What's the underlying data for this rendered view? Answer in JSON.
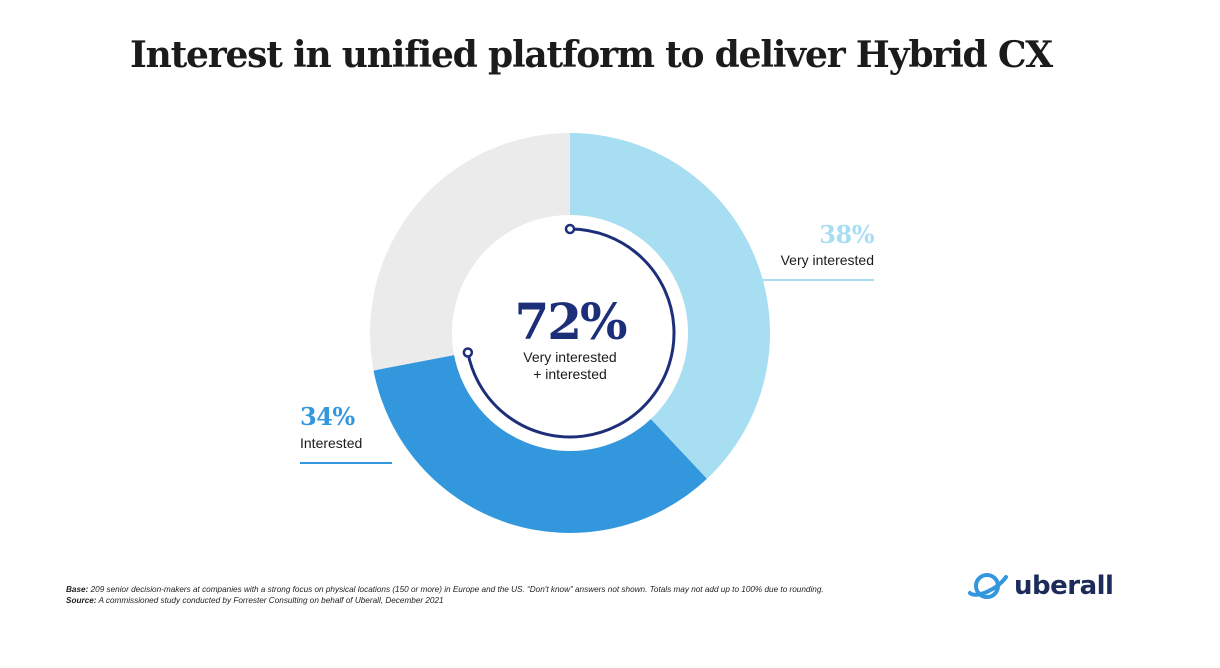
{
  "title": "Interest in unified platform to deliver Hybrid CX",
  "chart_data": {
    "type": "pie",
    "slices": [
      {
        "label": "Very interested",
        "value": 38,
        "display": "38%",
        "color": "#a8def1"
      },
      {
        "label": "Interested",
        "value": 34,
        "display": "34%",
        "color": "#3397dd"
      },
      {
        "label": "",
        "value": 28,
        "display": "",
        "color": "#ebebeb"
      }
    ],
    "center_value": "72%",
    "center_label_line1": "Very interested",
    "center_label_line2": "+ interested",
    "center_color": "#1e2f7a",
    "arc_color": "#1e2f7a"
  },
  "footnote": {
    "base_label": "Base:",
    "base_text": "209 senior decision-makers at companies with a strong focus on physical locations (150 or more) in Europe and the US. “Don't know” answers not shown. Totals may not add up to 100% due to rounding.",
    "source_label": "Source:",
    "source_text": "A commissioned study conducted by Forrester Consulting on behalf of Uberall, December 2021"
  },
  "logo": {
    "word": "uberall",
    "color": "#1c2b5a",
    "accent": "#3397dd",
    "icon": "planet-icon"
  }
}
